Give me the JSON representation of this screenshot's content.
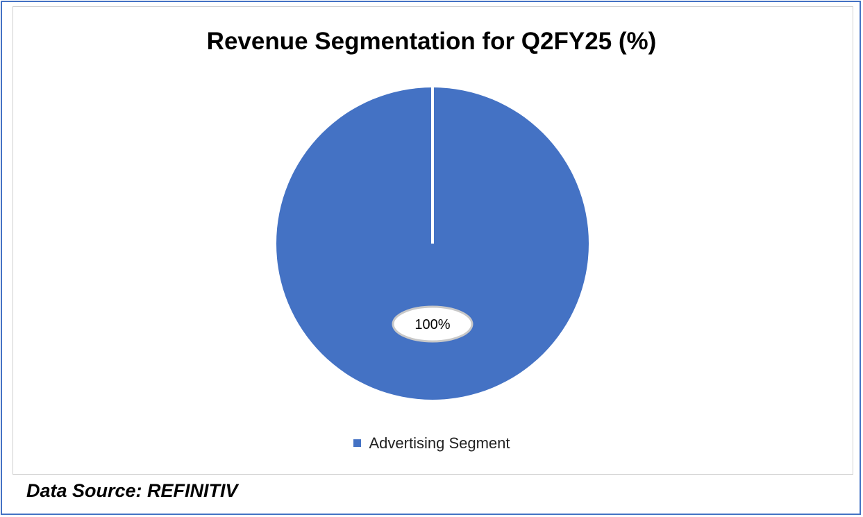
{
  "chart_data": {
    "type": "pie",
    "title": "Revenue Segmentation for Q2FY25 (%)",
    "categories": [
      "Advertising Segment"
    ],
    "values": [
      100
    ],
    "data_labels": [
      "100%"
    ],
    "colors": [
      "#4472c4"
    ],
    "legend_position": "bottom"
  },
  "source_text": "Data Source: REFINITIV",
  "colors": {
    "frame_border": "#4472c4",
    "chart_border": "#d0d0d0"
  }
}
